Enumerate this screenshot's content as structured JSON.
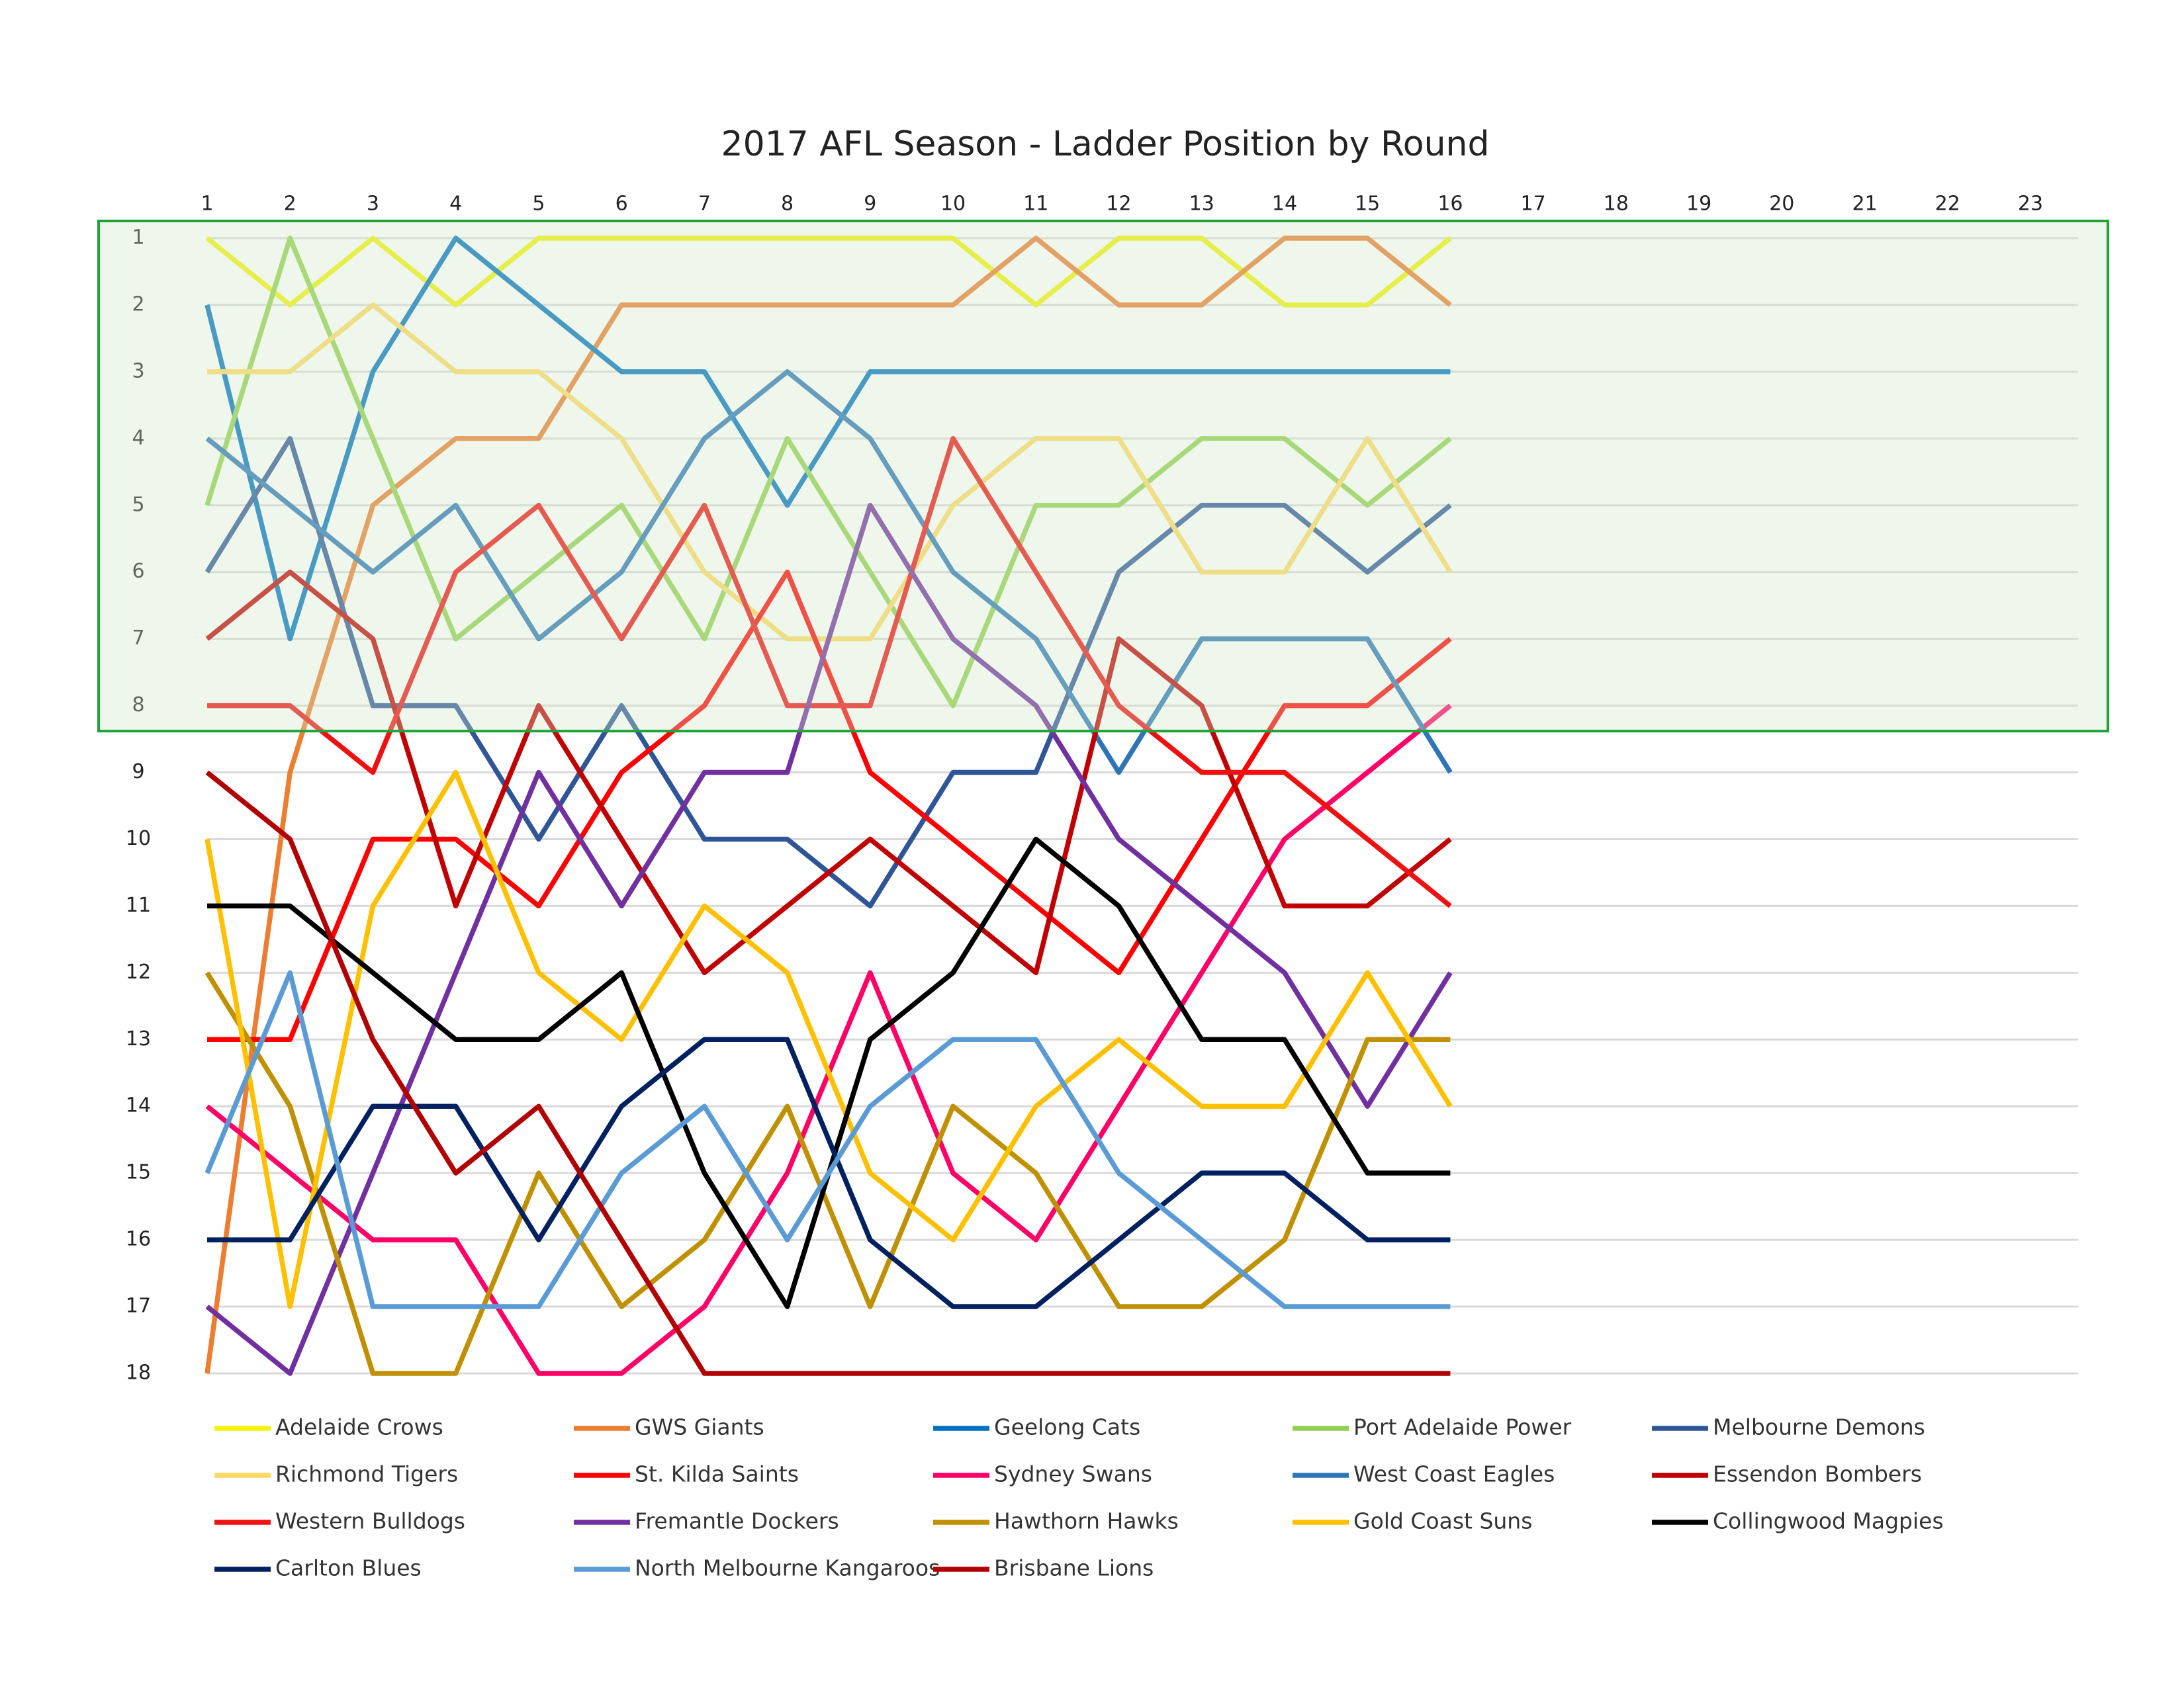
{
  "chart_data": {
    "type": "line",
    "title": "2017 AFL Season - Ladder Position by Round",
    "x": [
      1,
      2,
      3,
      4,
      5,
      6,
      7,
      8,
      9,
      10,
      11,
      12,
      13,
      14,
      15,
      16
    ],
    "xlim": [
      1,
      23
    ],
    "xticks": [
      1,
      2,
      3,
      4,
      5,
      6,
      7,
      8,
      9,
      10,
      11,
      12,
      13,
      14,
      15,
      16,
      17,
      18,
      19,
      20,
      21,
      22,
      23
    ],
    "ylim": [
      1,
      18
    ],
    "yticks": [
      1,
      2,
      3,
      4,
      5,
      6,
      7,
      8,
      9,
      10,
      11,
      12,
      13,
      14,
      15,
      16,
      17,
      18
    ],
    "y_inverted": true,
    "grid": true,
    "legend": "bottom",
    "series": [
      {
        "name": "Adelaide Crows",
        "color": "#f2f20a",
        "values": [
          1,
          2,
          1,
          2,
          1,
          1,
          1,
          1,
          1,
          1,
          2,
          1,
          1,
          2,
          2,
          1
        ]
      },
      {
        "name": "GWS Giants",
        "color": "#ed7d31",
        "values": [
          18,
          9,
          5,
          4,
          4,
          2,
          2,
          2,
          2,
          2,
          1,
          2,
          2,
          1,
          1,
          2
        ]
      },
      {
        "name": "Geelong Cats",
        "color": "#0070c0",
        "values": [
          2,
          7,
          3,
          1,
          2,
          3,
          3,
          5,
          3,
          3,
          3,
          3,
          3,
          3,
          3,
          3
        ]
      },
      {
        "name": "Port Adelaide Power",
        "color": "#92d050",
        "values": [
          5,
          1,
          4,
          7,
          6,
          5,
          7,
          4,
          6,
          8,
          5,
          5,
          4,
          4,
          5,
          4
        ]
      },
      {
        "name": "Melbourne Demons",
        "color": "#2f5597",
        "values": [
          6,
          4,
          8,
          8,
          10,
          8,
          10,
          10,
          11,
          9,
          9,
          6,
          5,
          5,
          6,
          5
        ]
      },
      {
        "name": "Richmond Tigers",
        "color": "#ffd966",
        "values": [
          3,
          3,
          2,
          3,
          3,
          4,
          6,
          7,
          7,
          5,
          4,
          4,
          6,
          6,
          4,
          6
        ]
      },
      {
        "name": "St. Kilda Saints",
        "color": "#ff0000",
        "values": [
          13,
          13,
          10,
          10,
          11,
          9,
          8,
          6,
          9,
          10,
          11,
          12,
          10,
          8,
          8,
          7
        ]
      },
      {
        "name": "Sydney Swans",
        "color": "#ff0066",
        "values": [
          14,
          15,
          16,
          16,
          18,
          18,
          17,
          15,
          12,
          15,
          16,
          14,
          12,
          10,
          9,
          8
        ]
      },
      {
        "name": "West Coast Eagles",
        "color": "#2e75b6",
        "values": [
          4,
          5,
          6,
          5,
          7,
          6,
          4,
          3,
          4,
          6,
          7,
          9,
          7,
          7,
          7,
          9
        ]
      },
      {
        "name": "Essendon Bombers",
        "color": "#c00000",
        "values": [
          7,
          6,
          7,
          11,
          8,
          10,
          12,
          11,
          10,
          11,
          12,
          7,
          8,
          11,
          11,
          10
        ]
      },
      {
        "name": "Western Bulldogs",
        "color": "#ee1111",
        "values": [
          8,
          8,
          9,
          6,
          5,
          7,
          5,
          8,
          8,
          4,
          6,
          8,
          9,
          9,
          10,
          11
        ]
      },
      {
        "name": "Fremantle Dockers",
        "color": "#7030a0",
        "values": [
          17,
          18,
          15,
          12,
          9,
          11,
          9,
          9,
          5,
          7,
          8,
          10,
          11,
          12,
          14,
          12
        ]
      },
      {
        "name": "Hawthorn Hawks",
        "color": "#bf9000",
        "values": [
          12,
          14,
          18,
          18,
          15,
          17,
          16,
          14,
          17,
          14,
          15,
          17,
          17,
          16,
          13,
          13
        ]
      },
      {
        "name": "Gold Coast Suns",
        "color": "#ffc000",
        "values": [
          10,
          17,
          11,
          9,
          12,
          13,
          11,
          12,
          15,
          16,
          14,
          13,
          14,
          14,
          12,
          14
        ]
      },
      {
        "name": "Collingwood Magpies",
        "color": "#000000",
        "values": [
          11,
          11,
          12,
          13,
          13,
          12,
          15,
          17,
          13,
          12,
          10,
          11,
          13,
          13,
          15,
          15
        ]
      },
      {
        "name": "Carlton Blues",
        "color": "#002060",
        "values": [
          16,
          16,
          14,
          14,
          16,
          14,
          13,
          13,
          16,
          17,
          17,
          16,
          15,
          15,
          16,
          16
        ]
      },
      {
        "name": "North Melbourne Kangaroos",
        "color": "#5b9bd5",
        "values": [
          15,
          12,
          17,
          17,
          17,
          15,
          14,
          16,
          14,
          13,
          13,
          15,
          16,
          17,
          17,
          17
        ]
      },
      {
        "name": "Brisbane Lions",
        "color": "#b00000",
        "values": [
          9,
          10,
          13,
          15,
          14,
          16,
          18,
          18,
          18,
          18,
          18,
          18,
          18,
          18,
          18,
          18
        ]
      }
    ]
  }
}
